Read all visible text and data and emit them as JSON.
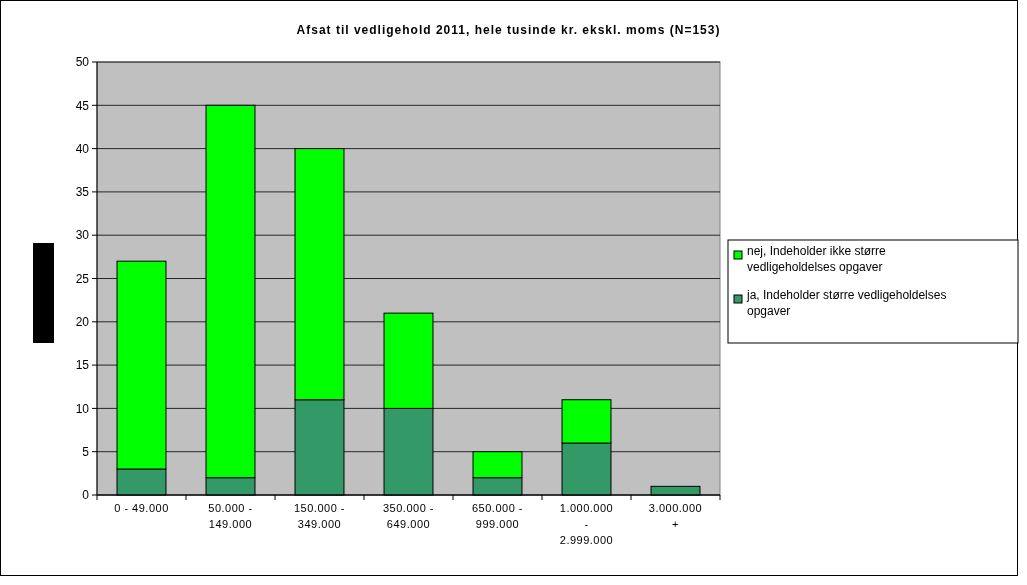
{
  "chart_data": {
    "type": "bar",
    "title": "Afsat til vedligehold 2011, hele tusinde kr. ekskl. moms (N=153)",
    "categories": [
      "0 - 49.000",
      "50.000 - 149.000",
      "150.000 - 349.000",
      "350.000 - 649.000",
      "650.000 - 999.000",
      "1.000.000 - 2.999.000",
      "3.000.000 +"
    ],
    "stacked": true,
    "series": [
      {
        "name": "ja, Indeholder større vedligeholdelses opgaver",
        "color": "#339966",
        "values": [
          3,
          2,
          11,
          10,
          2,
          6,
          1
        ]
      },
      {
        "name": "nej, Indeholder ikke større vedligeholdelses opgaver",
        "color": "#00ff00",
        "values": [
          24,
          43,
          29,
          11,
          3,
          5,
          0
        ]
      }
    ],
    "ylim": [
      0,
      50
    ],
    "yticks": [
      0,
      5,
      10,
      15,
      20,
      25,
      30,
      35,
      40,
      45,
      50
    ],
    "grid": "y",
    "legend": "right"
  }
}
